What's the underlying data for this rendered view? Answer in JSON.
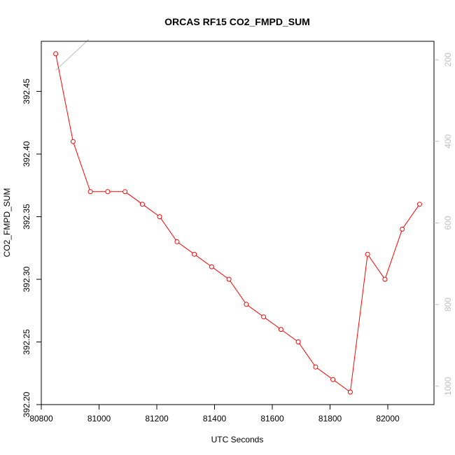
{
  "chart_data": {
    "type": "line",
    "title": "ORCAS RF15 CO2_FMPD_SUM",
    "xlabel": "UTC Seconds",
    "ylabel": "CO2_FMPD_SUM",
    "xlim": [
      80800,
      82160
    ],
    "ylim": [
      392.2,
      392.49
    ],
    "x_ticks": [
      80800,
      81000,
      81200,
      81400,
      81600,
      81800,
      82000
    ],
    "y_ticks": [
      392.2,
      392.25,
      392.3,
      392.35,
      392.4,
      392.45
    ],
    "y_tick_labels": [
      "392.20",
      "392.25",
      "392.30",
      "392.35",
      "392.40",
      "392.45"
    ],
    "grid": false,
    "series": [
      {
        "color": "#ff0000",
        "marker": "open-circle",
        "x": [
          80850,
          80910,
          80970,
          81030,
          81090,
          81150,
          81210,
          81270,
          81330,
          81390,
          81450,
          81510,
          81570,
          81630,
          81690,
          81750,
          81810,
          81870,
          81930,
          81990,
          82050,
          82110
        ],
        "y": [
          392.48,
          392.41,
          392.37,
          392.37,
          392.37,
          392.36,
          392.35,
          392.33,
          392.32,
          392.31,
          392.3,
          392.28,
          392.27,
          392.26,
          392.25,
          392.23,
          392.22,
          392.21,
          392.32,
          392.3,
          392.34,
          392.36
        ]
      }
    ],
    "right_axis": {
      "color": "#c0c0c0",
      "reversed": true,
      "lim": [
        155,
        1045
      ],
      "ticks": [
        200,
        400,
        600,
        800,
        1000
      ],
      "tick_labels": [
        "200",
        "400",
        "600",
        "800",
        "1000"
      ],
      "series": {
        "color": "#c8c8c8",
        "x": [
          80850,
          80965
        ],
        "y": [
          226,
          150
        ]
      }
    }
  }
}
